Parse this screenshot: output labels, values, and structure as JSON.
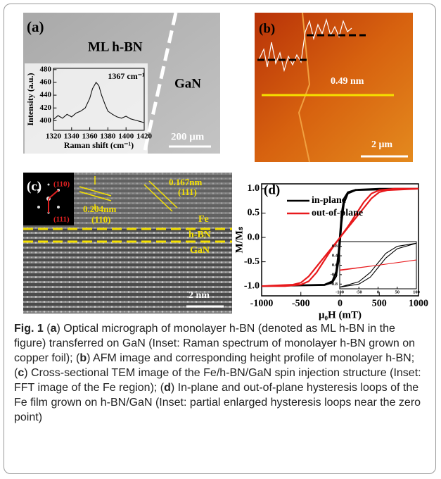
{
  "panels": {
    "a": {
      "label": "(a)",
      "film": "ML h-BN",
      "substrate": "GaN",
      "scale_bar": "200 μm"
    },
    "b": {
      "label": "(b)",
      "height": "0.49 nm",
      "scale_bar": "2 μm"
    },
    "c": {
      "label": "(c)",
      "fft_labels": [
        "(110)",
        "(111)"
      ],
      "spacing_1": "0.204nm",
      "plane_1": "(110)",
      "spacing_2": "0.167nm",
      "plane_2": "(111)",
      "layers": [
        "Fe",
        "h-BN",
        "GaN"
      ],
      "scale_bar": "2 nm"
    },
    "d": {
      "label": "(d)"
    }
  },
  "chart_data": [
    {
      "type": "line",
      "x_label": "Raman shift (cm⁻¹)",
      "y_label": "Intensity (a.u.)",
      "annotation": "1367 cm⁻¹",
      "xlim": [
        1320,
        1420
      ],
      "xticks": [
        1320,
        1340,
        1360,
        1380,
        1400,
        1420
      ],
      "ylim": [
        385,
        482
      ],
      "yticks": [
        400,
        420,
        440,
        460,
        480
      ],
      "series": [
        {
          "color": "#111111",
          "x": [
            1320,
            1325,
            1330,
            1335,
            1340,
            1345,
            1350,
            1355,
            1360,
            1363,
            1367,
            1370,
            1373,
            1377,
            1380,
            1385,
            1390,
            1395,
            1400,
            1405,
            1410,
            1415,
            1420
          ],
          "values": [
            402,
            408,
            404,
            410,
            406,
            412,
            415,
            420,
            435,
            450,
            460,
            455,
            440,
            425,
            415,
            410,
            406,
            404,
            407,
            403,
            401,
            399,
            397
          ]
        }
      ]
    },
    {
      "type": "line",
      "x_label": "μ₀H (mT)",
      "y_label": "M/Mₛ",
      "legend": "top-left",
      "xlim": [
        -1000,
        1000
      ],
      "xticks": [
        -1000,
        -500,
        0,
        500,
        1000
      ],
      "ylim": [
        -1.2,
        1.1
      ],
      "yticks": [
        {
          "value": -1,
          "label": "-1.0"
        },
        -0.5,
        {
          "value": 0,
          "label": "0.0"
        },
        0.5,
        {
          "value": 1,
          "label": "1.0"
        }
      ],
      "series": [
        {
          "name": "in-plane",
          "color": "#000000",
          "x": [
            -1000,
            -200,
            -100,
            -50,
            -20,
            0,
            20,
            50,
            100,
            200,
            500,
            1000,
            200,
            100,
            50,
            20,
            0,
            -20,
            -50,
            -100,
            -200,
            -1000
          ],
          "values": [
            -1,
            -0.97,
            -0.9,
            -0.7,
            -0.3,
            0.1,
            0.5,
            0.8,
            0.93,
            0.98,
            1,
            1,
            0.97,
            0.9,
            0.7,
            0.3,
            -0.1,
            -0.5,
            -0.8,
            -0.93,
            -0.98,
            -1
          ]
        },
        {
          "name": "out-of-plane",
          "color": "#e8191c",
          "x": [
            -1000,
            -600,
            -500,
            -400,
            -300,
            -200,
            -100,
            0,
            100,
            200,
            300,
            400,
            500,
            700,
            1000,
            600,
            500,
            400,
            300,
            200,
            100,
            0,
            -100,
            -200,
            -300,
            -400,
            -500,
            -700,
            -1000
          ],
          "values": [
            -1,
            -0.97,
            -0.93,
            -0.8,
            -0.6,
            -0.4,
            -0.2,
            0,
            0.22,
            0.47,
            0.72,
            0.9,
            0.97,
            1,
            1,
            0.97,
            0.93,
            0.8,
            0.6,
            0.4,
            0.2,
            0,
            -0.22,
            -0.47,
            -0.72,
            -0.9,
            -0.97,
            -1,
            -1
          ]
        }
      ]
    },
    {
      "type": "line",
      "xlim": [
        -100,
        100
      ],
      "xticks": [
        -100,
        -50,
        0,
        50,
        100
      ],
      "ylim": [
        -1,
        1
      ],
      "yticks": [
        -0.8,
        -0.4,
        {
          "value": 0,
          "label": "0.0"
        },
        0.4,
        0.8
      ],
      "series": [
        {
          "color": "#000000",
          "x": [
            -100,
            -50,
            -20,
            0,
            20,
            50,
            100,
            50,
            20,
            0,
            -20,
            -50,
            -100
          ],
          "values": [
            -0.93,
            -0.7,
            -0.3,
            0.1,
            0.5,
            0.8,
            0.93,
            0.7,
            0.3,
            -0.1,
            -0.5,
            -0.8,
            -0.93
          ]
        },
        {
          "color": "#e8191c",
          "x": [
            -100,
            0,
            100,
            0,
            -100
          ],
          "values": [
            -0.2,
            0,
            0.22,
            0,
            -0.22
          ]
        }
      ]
    }
  ],
  "caption": {
    "label": "Fig. 1",
    "segments": [
      {
        "text": " ("
      },
      {
        "text": "a",
        "bold": true
      },
      {
        "text": ") Optical micrograph of monolayer h-BN (denoted as ML h-BN in the figure) transferred on GaN (Inset: Raman spectrum of monolayer h-BN grown on copper foil); ("
      },
      {
        "text": "b",
        "bold": true
      },
      {
        "text": ") AFM image and corresponding height profile of monolayer h-BN; ("
      },
      {
        "text": "c",
        "bold": true
      },
      {
        "text": ") Cross-sectional TEM image of the Fe/h-BN/GaN spin injection structure (Inset: FFT image of the Fe region); ("
      },
      {
        "text": "d",
        "bold": true
      },
      {
        "text": ") In-plane and out-of-plane hysteresis loops of the Fe film grown on h-BN/GaN (Inset: partial enlarged hysteresis loops near the zero point)"
      }
    ]
  }
}
